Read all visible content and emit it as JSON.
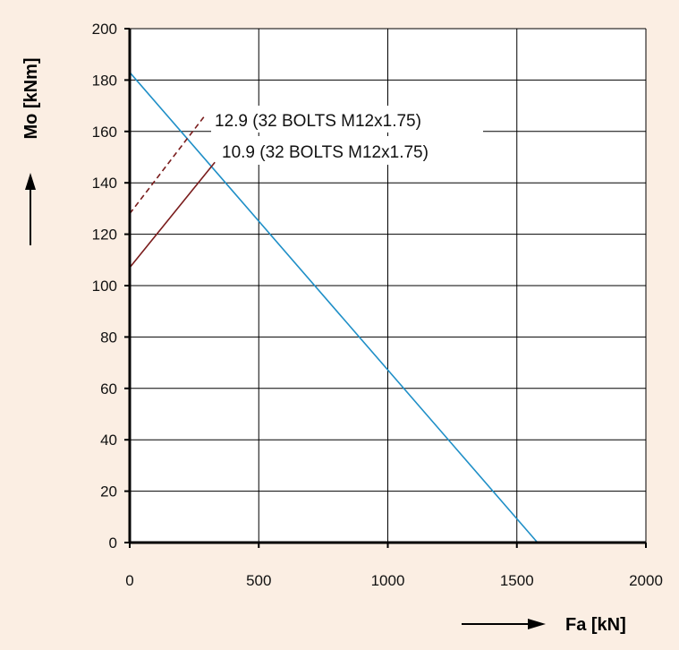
{
  "chart_data": {
    "type": "line",
    "xlabel": "Fa [kN]",
    "ylabel": "Mo [kNm]",
    "xlim": [
      0,
      2000
    ],
    "ylim": [
      0,
      200
    ],
    "xticks": [
      "0",
      "500",
      "1000",
      "1500",
      "2000"
    ],
    "yticks": [
      "0",
      "20",
      "40",
      "60",
      "80",
      "100",
      "120",
      "140",
      "160",
      "180",
      "200"
    ],
    "grid": true,
    "background": "#fbeee3",
    "series": [
      {
        "id": "raceway",
        "name": "",
        "color": "#1f8fc7",
        "style": "solid",
        "x": [
          0,
          1580
        ],
        "y": [
          183,
          0
        ]
      },
      {
        "id": "bolt-12-9",
        "name": "12.9 (32 BOLTS M12x1.75)",
        "color": "#7a1c1c",
        "style": "dashed",
        "x": [
          0,
          290
        ],
        "y": [
          128,
          166
        ]
      },
      {
        "id": "bolt-10-9",
        "name": "10.9 (32 BOLTS M12x1.75)",
        "color": "#7a1c1c",
        "style": "solid",
        "x": [
          0,
          330
        ],
        "y": [
          107,
          148
        ]
      }
    ]
  }
}
